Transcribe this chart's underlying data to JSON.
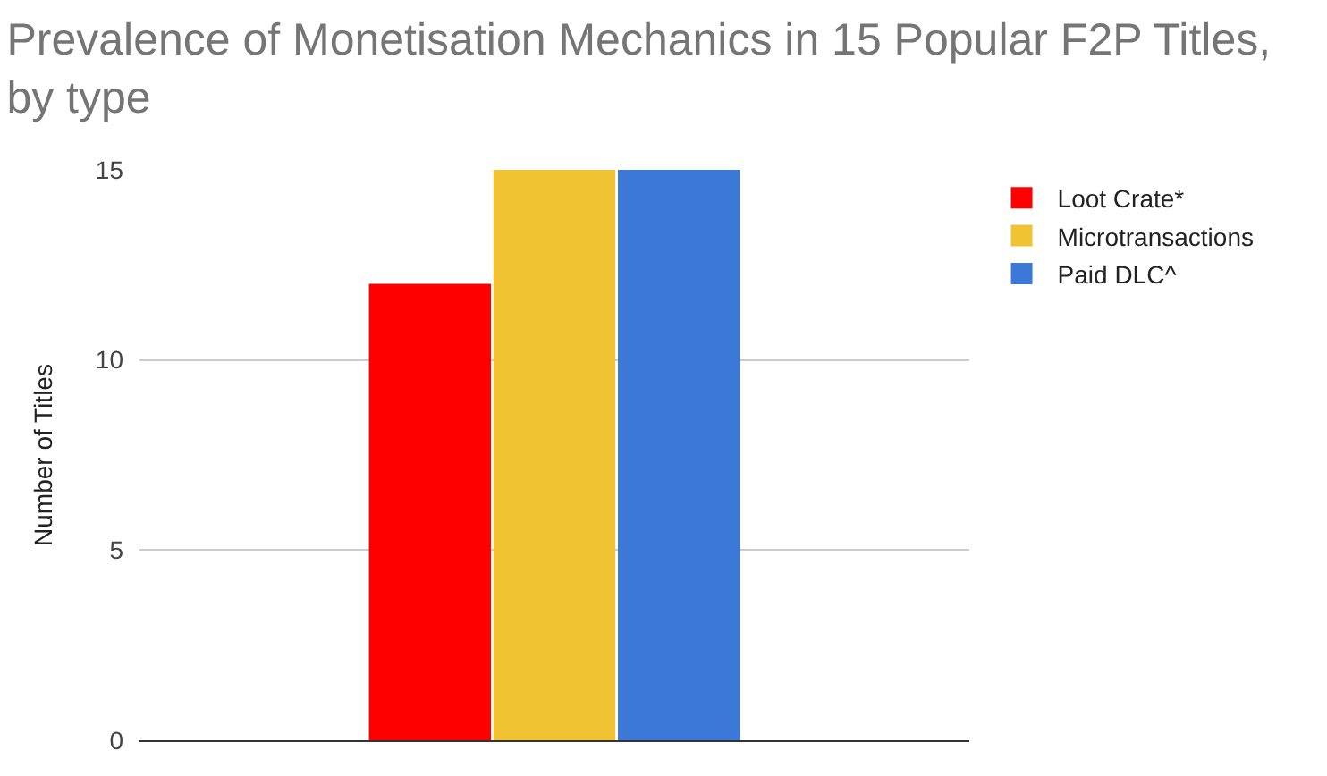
{
  "chart_data": {
    "type": "bar",
    "title": "Prevalence of Monetisation Mechanics in 15 Popular F2P Titles, by type",
    "ylabel": "Number of Titles",
    "categories": [
      null
    ],
    "series": [
      {
        "name": "Loot Crate*",
        "color": "#ff0000",
        "values": [
          12
        ]
      },
      {
        "name": "Microtransactions",
        "color": "#f1c232",
        "values": [
          15
        ]
      },
      {
        "name": "Paid DLC^",
        "color": "#3c78d8",
        "values": [
          15
        ]
      }
    ],
    "ylim": [
      0,
      15
    ],
    "yticks": [
      0,
      5,
      10,
      15
    ],
    "grid": "y",
    "legend": "top right",
    "tick_labels": "y"
  }
}
